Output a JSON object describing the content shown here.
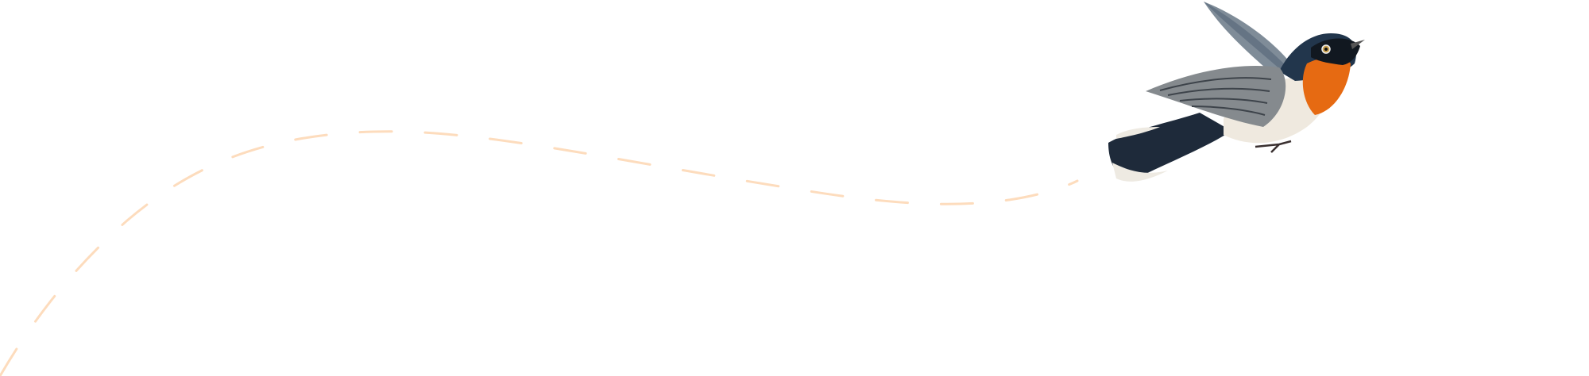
{
  "colors": {
    "flight_path": "#fddcbd",
    "bird_throat": "#e8680f",
    "bird_back": "#1f3247",
    "bird_wing": "#7d8289",
    "bird_belly": "#f1ece2"
  },
  "illustration": {
    "subject": "bird-in-flight",
    "path_style": "dashed"
  }
}
